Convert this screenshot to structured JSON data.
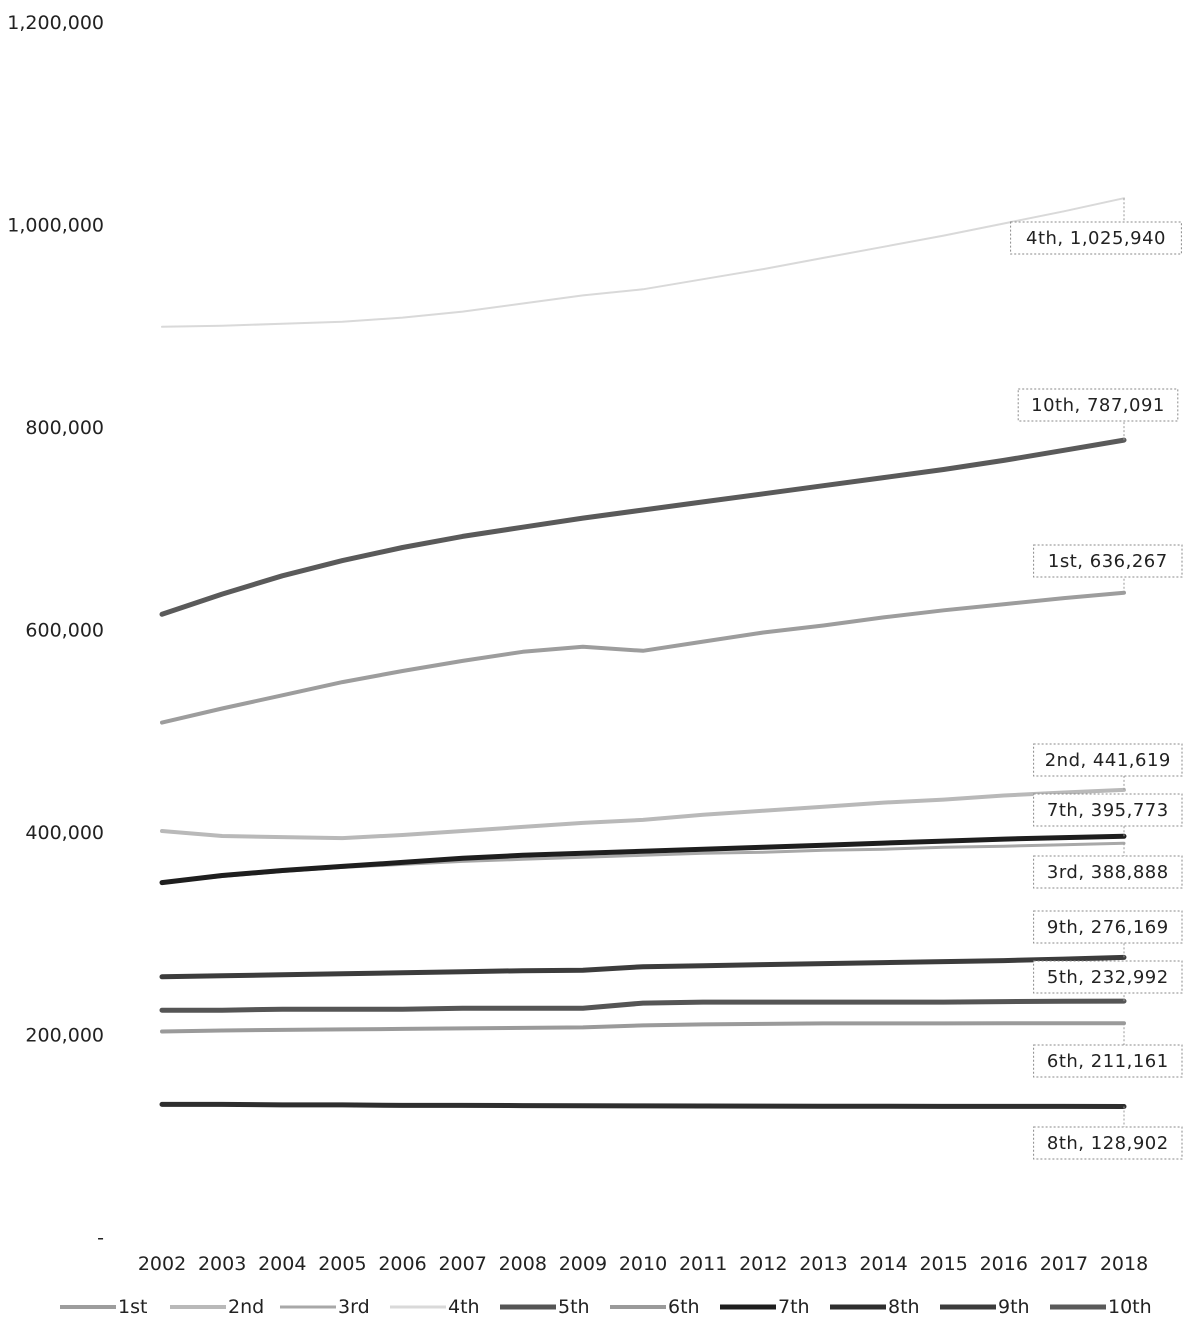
{
  "chart_data": {
    "type": "line",
    "title": "",
    "xlabel": "",
    "ylabel": "",
    "ylim": [
      0,
      1200000
    ],
    "y_ticks": [
      "-",
      "200,000",
      "400,000",
      "600,000",
      "800,000",
      "1,000,000",
      "1,200,000"
    ],
    "x": [
      "2002",
      "2003",
      "2004",
      "2005",
      "2006",
      "2007",
      "2008",
      "2009",
      "2010",
      "2011",
      "2012",
      "2013",
      "2014",
      "2015",
      "2016",
      "2017",
      "2018"
    ],
    "grid": false,
    "legend_position": "bottom",
    "series": [
      {
        "name": "1st",
        "color": "#9d9d9d",
        "width": 4,
        "label": "1st, 636,267",
        "values": [
          508000,
          522000,
          535000,
          548000,
          559000,
          569000,
          578000,
          583000,
          579000,
          588000,
          597000,
          604000,
          612000,
          619000,
          625000,
          631000,
          636267
        ]
      },
      {
        "name": "2nd",
        "color": "#b9b9b9",
        "width": 4,
        "label": "2nd, 441,619",
        "values": [
          401000,
          396000,
          395000,
          394000,
          397000,
          401000,
          405000,
          409000,
          412000,
          417000,
          421000,
          425000,
          429000,
          432000,
          436000,
          439000,
          441619
        ]
      },
      {
        "name": "3rd",
        "color": "#a8a8a8",
        "width": 3,
        "label": "3rd, 388,888",
        "values": [
          350000,
          356000,
          361000,
          365000,
          368000,
          371000,
          373000,
          375000,
          377000,
          379000,
          380000,
          382000,
          383000,
          385000,
          386000,
          387500,
          388888
        ]
      },
      {
        "name": "4th",
        "color": "#d9d9d9",
        "width": 2,
        "label": "4th, 1,025,940",
        "values": [
          899000,
          900000,
          902000,
          904000,
          908000,
          914000,
          922000,
          930000,
          936000,
          946000,
          956000,
          967000,
          978000,
          989000,
          1001000,
          1013000,
          1025940
        ]
      },
      {
        "name": "5th",
        "color": "#555555",
        "width": 5,
        "label": "5th, 232,992",
        "values": [
          224000,
          224000,
          225000,
          225000,
          225000,
          226000,
          226000,
          226000,
          231000,
          232000,
          232000,
          232000,
          232000,
          232000,
          232500,
          232800,
          232992
        ]
      },
      {
        "name": "6th",
        "color": "#9a9a9a",
        "width": 4,
        "label": "6th, 211,161",
        "values": [
          203000,
          204000,
          204500,
          205000,
          205500,
          206000,
          206500,
          207000,
          209000,
          210000,
          210500,
          211000,
          211000,
          211000,
          211100,
          211100,
          211161
        ]
      },
      {
        "name": "7th",
        "color": "#1e1e1e",
        "width": 5,
        "label": "7th, 395,773",
        "values": [
          350000,
          357000,
          362000,
          366000,
          370000,
          374000,
          377000,
          379000,
          381000,
          383000,
          385000,
          387000,
          389000,
          391000,
          393000,
          394500,
          395773
        ]
      },
      {
        "name": "8th",
        "color": "#2e2e2e",
        "width": 5,
        "label": "8th, 128,902",
        "values": [
          131000,
          131000,
          130500,
          130500,
          130000,
          130000,
          129800,
          129600,
          129500,
          129400,
          129300,
          129200,
          129100,
          129000,
          129000,
          128950,
          128902
        ]
      },
      {
        "name": "9th",
        "color": "#3c3c3c",
        "width": 5,
        "label": "9th, 276,169",
        "values": [
          257000,
          258000,
          259000,
          260000,
          261000,
          262000,
          263000,
          263500,
          267000,
          268000,
          269000,
          270000,
          271000,
          272000,
          273000,
          274500,
          276169
        ]
      },
      {
        "name": "10th",
        "color": "#5a5a5a",
        "width": 5,
        "label": "10th, 787,091",
        "values": [
          615000,
          635000,
          653000,
          668000,
          681000,
          692000,
          701000,
          710000,
          718000,
          726000,
          734000,
          742000,
          750000,
          758000,
          767000,
          777000,
          787091
        ]
      }
    ]
  }
}
